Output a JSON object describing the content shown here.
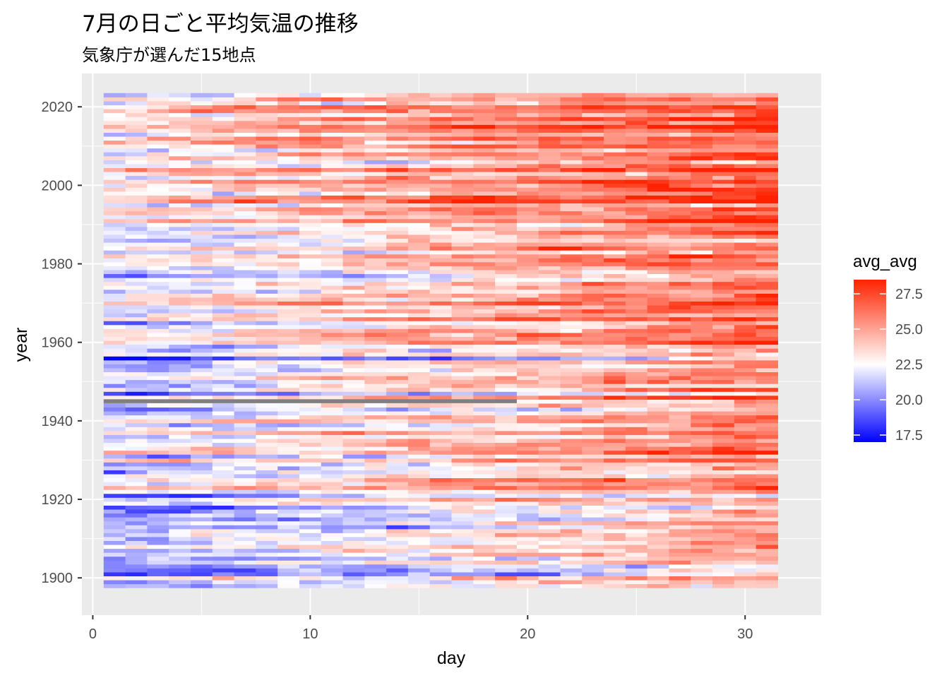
{
  "chart_data": {
    "type": "heatmap",
    "title": "7月の日ごと平均気温の推移",
    "subtitle": "気象庁が選んだ15地点",
    "xlabel": "day",
    "ylabel": "year",
    "x_ticks": [
      0,
      10,
      20,
      30
    ],
    "y_ticks": [
      1900,
      1920,
      1940,
      1960,
      1980,
      2000,
      2020
    ],
    "x_range": [
      -0.5,
      33.5
    ],
    "y_range": [
      1890.5,
      2028.5
    ],
    "days": [
      1,
      31
    ],
    "years": [
      1898,
      2023
    ],
    "legend": {
      "title": "avg_avg",
      "position": "right",
      "ticks": [
        "27.5",
        "25.0",
        "22.5",
        "20.0",
        "17.5"
      ],
      "min": 17.0,
      "max": 28.5,
      "low_color": "#0000FF",
      "mid_color": "#FFFFFF",
      "high_color": "#FF2200",
      "midpoint": 22.5
    },
    "missing": {
      "year": 1945,
      "days": [
        1,
        19
      ],
      "color": "#7F7F7F"
    },
    "value_model": {
      "day1_1900_mean": 20.6,
      "day31_1900_mean": 24.6,
      "day1_2020_mean": 23.2,
      "day31_2020_mean": 27.4,
      "year_to_year_sd": 1.2,
      "day_to_day_sd": 0.8
    },
    "grid": true,
    "panel_background": "#EBEBEB"
  }
}
